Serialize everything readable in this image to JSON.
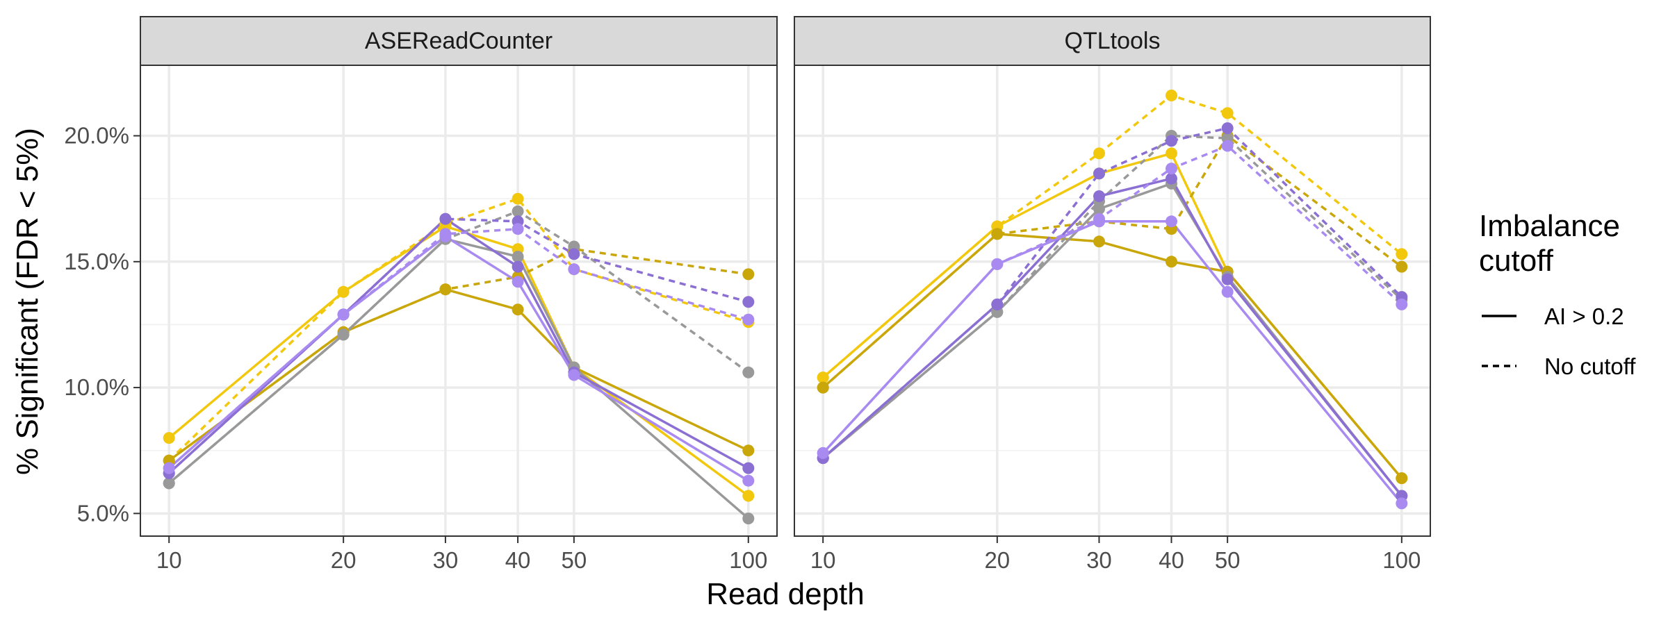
{
  "chart_data": {
    "type": "line",
    "xlabel": "Read depth",
    "ylabel": "% Significant (FDR < 5%)",
    "x": [
      10,
      20,
      30,
      40,
      50,
      100
    ],
    "x_scale": "log",
    "x_tick_labels": [
      "10",
      "20",
      "30",
      "40",
      "50",
      "100"
    ],
    "ylim": [
      4.1,
      22.8
    ],
    "y_ticks": [
      5,
      10,
      15,
      20
    ],
    "y_tick_labels": [
      "5.0%",
      "10.0%",
      "15.0%",
      "20.0%"
    ],
    "grid": true,
    "legend": {
      "title_lines": [
        "Imbalance",
        "cutoff"
      ],
      "placement": "right",
      "entries": [
        {
          "label": "AI > 0.2",
          "linetype": "solid"
        },
        {
          "label": "No cutoff",
          "linetype": "dashed"
        }
      ]
    },
    "panels": [
      {
        "label": "ASEReadCounter",
        "series": [
          {
            "color": "#F2C80F",
            "linetype": "solid",
            "values": [
              8.0,
              13.8,
              16.4,
              15.5,
              10.8,
              5.7
            ]
          },
          {
            "color": "#F2C80F",
            "linetype": "dashed",
            "values": [
              7.1,
              13.8,
              16.5,
              17.5,
              14.7,
              12.6
            ]
          },
          {
            "color": "#C9A60A",
            "linetype": "solid",
            "values": [
              7.1,
              12.2,
              13.9,
              13.1,
              10.8,
              7.5
            ]
          },
          {
            "color": "#C9A60A",
            "linetype": "dashed",
            "values": [
              7.1,
              12.2,
              13.9,
              14.4,
              15.5,
              14.5
            ]
          },
          {
            "color": "#999999",
            "linetype": "solid",
            "values": [
              6.2,
              12.1,
              15.9,
              15.2,
              10.8,
              4.8
            ]
          },
          {
            "color": "#999999",
            "linetype": "dashed",
            "values": [
              6.2,
              12.1,
              15.9,
              17.0,
              15.6,
              10.6
            ]
          },
          {
            "color": "#8B6FD3",
            "linetype": "solid",
            "values": [
              6.6,
              12.9,
              16.7,
              14.8,
              10.6,
              6.8
            ]
          },
          {
            "color": "#8B6FD3",
            "linetype": "dashed",
            "values": [
              6.6,
              12.9,
              16.7,
              16.6,
              15.3,
              13.4
            ]
          },
          {
            "color": "#A88AF0",
            "linetype": "solid",
            "values": [
              6.8,
              12.9,
              16.0,
              14.2,
              10.5,
              6.3
            ]
          },
          {
            "color": "#A88AF0",
            "linetype": "dashed",
            "values": [
              6.8,
              12.9,
              16.1,
              16.3,
              14.7,
              12.7
            ]
          }
        ]
      },
      {
        "label": "QTLtools",
        "series": [
          {
            "color": "#F2C80F",
            "linetype": "solid",
            "values": [
              10.4,
              16.4,
              18.5,
              19.3,
              14.6,
              6.4
            ]
          },
          {
            "color": "#F2C80F",
            "linetype": "dashed",
            "values": [
              10.4,
              16.4,
              19.3,
              21.6,
              20.9,
              15.3
            ]
          },
          {
            "color": "#C9A60A",
            "linetype": "solid",
            "values": [
              10.0,
              16.1,
              15.8,
              15.0,
              14.6,
              6.4
            ]
          },
          {
            "color": "#C9A60A",
            "linetype": "dashed",
            "values": [
              10.0,
              16.1,
              16.6,
              16.3,
              20.0,
              14.8
            ]
          },
          {
            "color": "#999999",
            "linetype": "solid",
            "values": [
              7.2,
              13.0,
              17.1,
              18.1,
              14.4,
              5.7
            ]
          },
          {
            "color": "#999999",
            "linetype": "dashed",
            "values": [
              7.2,
              13.0,
              17.4,
              20.0,
              19.9,
              13.5
            ]
          },
          {
            "color": "#8B6FD3",
            "linetype": "solid",
            "values": [
              7.2,
              13.3,
              17.6,
              18.3,
              14.3,
              5.7
            ]
          },
          {
            "color": "#8B6FD3",
            "linetype": "dashed",
            "values": [
              7.2,
              13.3,
              18.5,
              19.8,
              20.3,
              13.6
            ]
          },
          {
            "color": "#A88AF0",
            "linetype": "solid",
            "values": [
              7.4,
              14.9,
              16.6,
              16.6,
              13.8,
              5.4
            ]
          },
          {
            "color": "#A88AF0",
            "linetype": "dashed",
            "values": [
              7.4,
              14.9,
              16.7,
              18.7,
              19.6,
              13.3
            ]
          }
        ]
      }
    ]
  }
}
